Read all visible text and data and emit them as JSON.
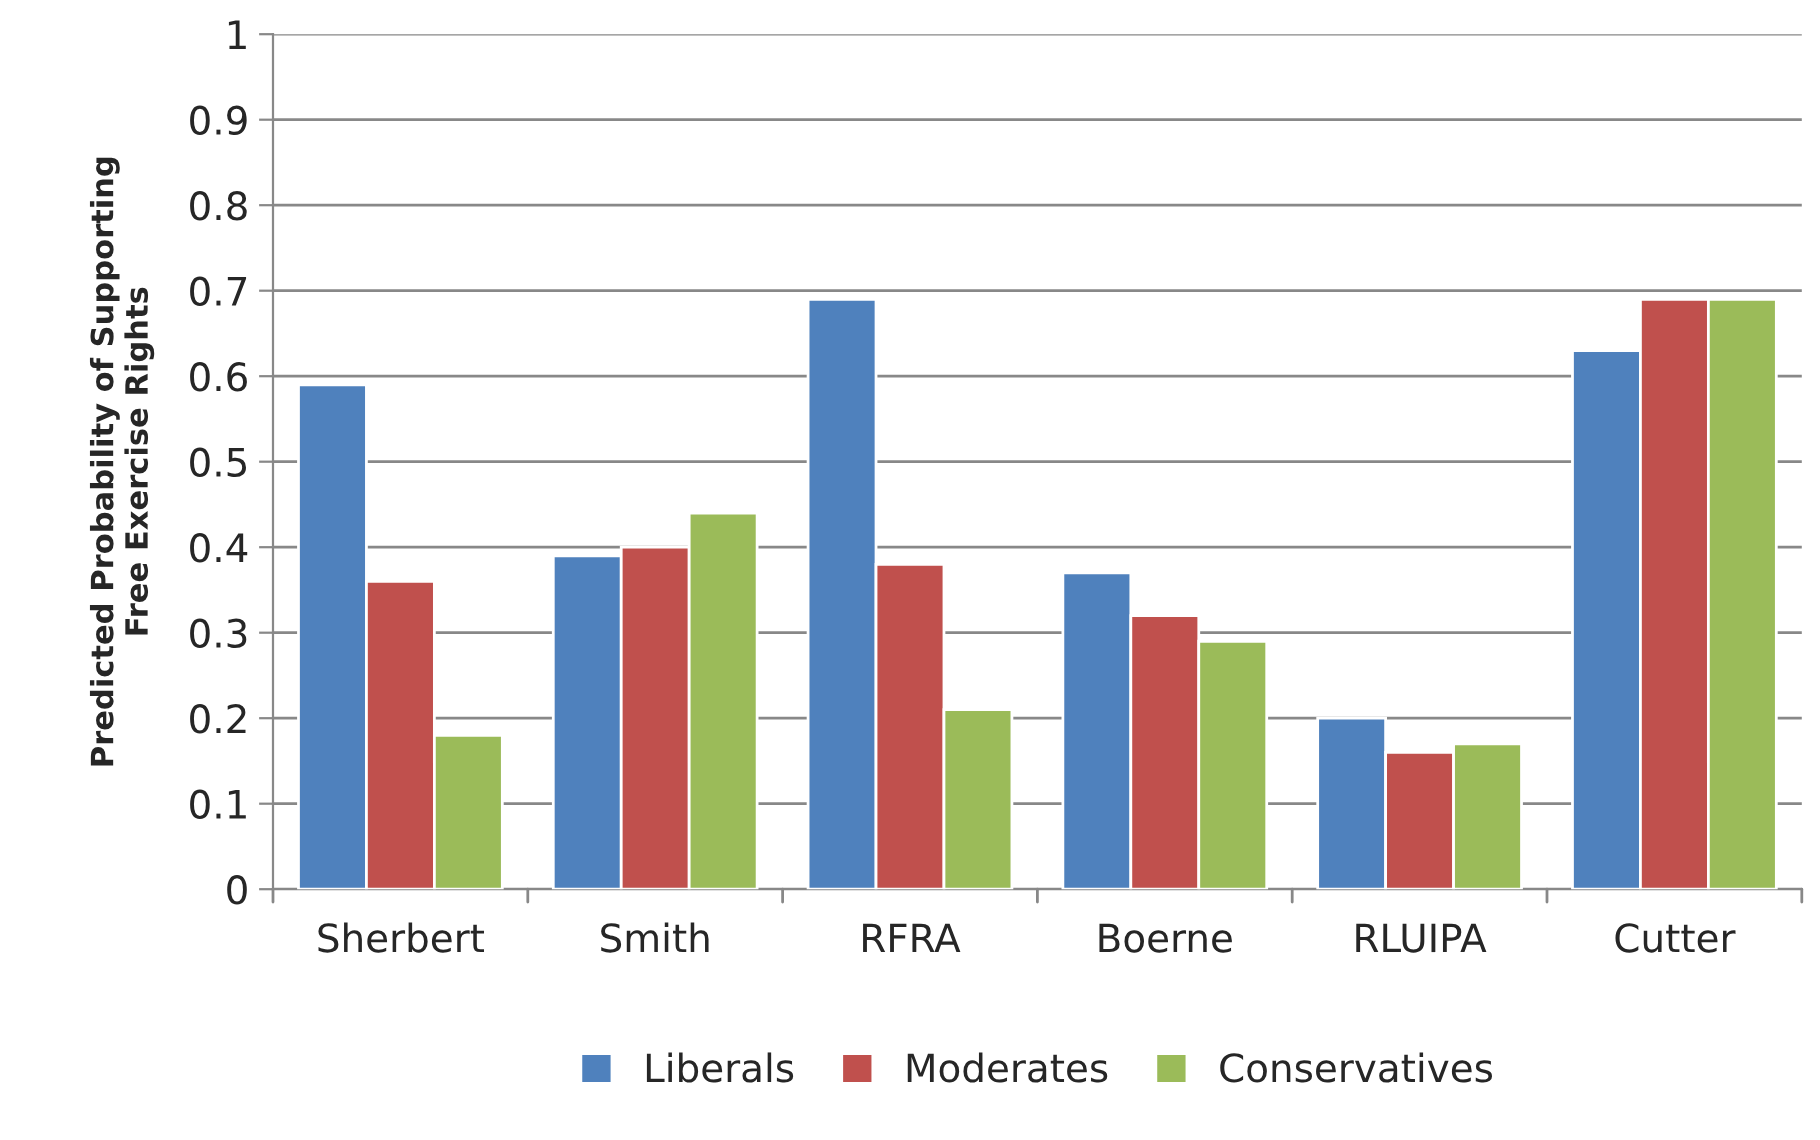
{
  "chart_data": {
    "type": "bar",
    "ylabel": "Predicted Probability of Supporting\nFree Exercise Rights",
    "categories": [
      "Sherbert",
      "Smith",
      "RFRA",
      "Boerne",
      "RLUIPA",
      "Cutter"
    ],
    "series": [
      {
        "name": "Liberals",
        "color": "#4f81bd",
        "values": [
          0.59,
          0.39,
          0.69,
          0.37,
          0.2,
          0.63
        ]
      },
      {
        "name": "Moderates",
        "color": "#c0504d",
        "values": [
          0.36,
          0.4,
          0.38,
          0.32,
          0.16,
          0.69
        ]
      },
      {
        "name": "Conservatives",
        "color": "#9bbb59",
        "values": [
          0.18,
          0.44,
          0.21,
          0.29,
          0.17,
          0.69
        ]
      }
    ],
    "ylim": [
      0,
      1
    ],
    "yticks": [
      0,
      0.1,
      0.2,
      0.3,
      0.4,
      0.5,
      0.6,
      0.7,
      0.8,
      0.9,
      1
    ],
    "grid": "y",
    "legend": "bottom"
  }
}
